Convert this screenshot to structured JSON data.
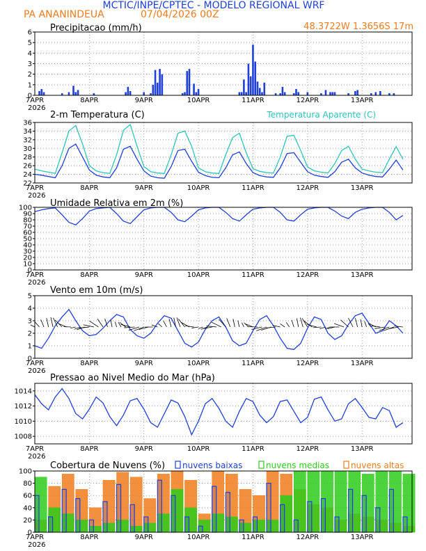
{
  "header": {
    "title": "MCTIC/INPE/CPTEC - MODELO REGIONAL WRF",
    "location": "PA ANANINDEUA",
    "datetime": "07/04/2026 00Z",
    "coords": "48.3722W 1.3656S 17m"
  },
  "colors": {
    "blue": "#1f3fd6",
    "orange": "#f07c1c",
    "cyan": "#2cc3b8",
    "green": "#2ecc1a",
    "grid": "#999999"
  },
  "chart_data": [
    {
      "type": "bar",
      "title": "Precipitacao (mm/h)",
      "x_labels": [
        "7APR",
        "8APR",
        "9APR",
        "10APR",
        "11APR",
        "12APR",
        "13APR"
      ],
      "x_sublabel": "2026",
      "ylim": [
        0,
        6
      ],
      "yticks": [
        0,
        1,
        2,
        3,
        4,
        5,
        6
      ],
      "grid": true,
      "x_hours": [
        2,
        3,
        4,
        12,
        15,
        17,
        18,
        19,
        26,
        40,
        41,
        42,
        48,
        51,
        52,
        53,
        54,
        55,
        56,
        65,
        66,
        67,
        68,
        70,
        71,
        72,
        90,
        91,
        92,
        93,
        94,
        95,
        96,
        97,
        98,
        99,
        100,
        101,
        106,
        108,
        109,
        110,
        114,
        115,
        116,
        120,
        126,
        128,
        130,
        131,
        132,
        138,
        141,
        142,
        148,
        150,
        152,
        156,
        158
      ],
      "values": [
        0.4,
        0.6,
        0.3,
        0.2,
        0.3,
        0.9,
        0.3,
        0.5,
        0.2,
        0.3,
        0.8,
        0.4,
        0.3,
        0.2,
        1.0,
        2.4,
        1.2,
        2.5,
        2.0,
        0.2,
        0.3,
        2.3,
        2.5,
        1.1,
        0.3,
        0.6,
        0.3,
        0.3,
        1.5,
        0.3,
        3.0,
        1.8,
        4.8,
        3.2,
        1.3,
        0.7,
        0.3,
        1.2,
        0.2,
        0.2,
        0.8,
        0.3,
        0.2,
        0.6,
        0.3,
        0.3,
        0.2,
        0.5,
        0.3,
        0.3,
        0.3,
        0.2,
        0.4,
        0.5,
        0.2,
        0.3,
        0.4,
        0.2,
        0.2
      ]
    },
    {
      "type": "line",
      "title": "2-m Temperatura (C)",
      "x_labels": [
        "7APR",
        "8APR",
        "9APR",
        "10APR",
        "11APR",
        "12APR",
        "13APR"
      ],
      "x_sublabel": "2026",
      "ylim": [
        22,
        36
      ],
      "yticks": [
        22,
        24,
        26,
        28,
        30,
        32,
        34,
        36
      ],
      "grid": true,
      "legend_position": "top-right",
      "series": [
        {
          "name": "",
          "color": "#1f3fd6",
          "x": [
            0,
            3,
            6,
            9,
            12,
            15,
            18,
            21,
            24,
            27,
            30,
            33,
            36,
            39,
            42,
            45,
            48,
            51,
            54,
            57,
            60,
            63,
            66,
            69,
            72,
            75,
            78,
            81,
            84,
            87,
            90,
            93,
            96,
            99,
            102,
            105,
            108,
            111,
            114,
            117,
            120,
            123,
            126,
            129,
            132,
            135,
            138,
            141,
            144,
            147,
            150,
            153,
            156,
            159,
            162
          ],
          "values": [
            24,
            23.8,
            23.5,
            23.2,
            26,
            30,
            31,
            28,
            25,
            23.8,
            23.4,
            23.2,
            25.5,
            29.8,
            30.5,
            27.5,
            24.8,
            23.6,
            23.2,
            23.1,
            25.8,
            29.5,
            29.8,
            27,
            24.5,
            23.7,
            23.3,
            23.2,
            25.5,
            28.5,
            29.2,
            26.5,
            24.4,
            23.7,
            23.4,
            23.3,
            25.5,
            28.8,
            29,
            26.8,
            24.6,
            23.8,
            23.5,
            23.3,
            24.6,
            26.8,
            27.5,
            25.5,
            24.3,
            23.8,
            23.5,
            23.4,
            25.2,
            27.3,
            25
          ]
        },
        {
          "name": "Temperatura Aparente (C)",
          "color": "#2cc3b8",
          "x": [
            0,
            3,
            6,
            9,
            12,
            15,
            18,
            21,
            24,
            27,
            30,
            33,
            36,
            39,
            42,
            45,
            48,
            51,
            54,
            57,
            60,
            63,
            66,
            69,
            72,
            75,
            78,
            81,
            84,
            87,
            90,
            93,
            96,
            99,
            102,
            105,
            108,
            111,
            114,
            117,
            120,
            123,
            126,
            129,
            132,
            135,
            138,
            141,
            144,
            147,
            150,
            153,
            156,
            159,
            162
          ],
          "values": [
            25.2,
            24.8,
            24.5,
            24.2,
            29,
            34,
            35.3,
            31,
            26,
            24.8,
            24.4,
            24.2,
            28.5,
            34.2,
            35.5,
            30.5,
            25.8,
            24.6,
            24.3,
            24.2,
            28.5,
            33.5,
            34,
            30.5,
            25.5,
            24.6,
            24.3,
            24.2,
            28.5,
            32.5,
            33.5,
            29,
            25.3,
            24.7,
            24.4,
            24.3,
            28,
            32.8,
            33,
            29.5,
            25.7,
            24.8,
            24.5,
            24.3,
            26.5,
            29.5,
            30.5,
            27.5,
            25.2,
            24.8,
            24.5,
            24.4,
            27.5,
            30.4,
            27.5
          ]
        }
      ]
    },
    {
      "type": "line",
      "title": "Umidade Relativa em 2m (%)",
      "x_labels": [
        "7APR",
        "8APR",
        "9APR",
        "10APR",
        "11APR",
        "12APR",
        "13APR"
      ],
      "x_sublabel": "2026",
      "ylim": [
        0,
        100
      ],
      "yticks": [
        0,
        10,
        20,
        30,
        40,
        50,
        60,
        70,
        80,
        90,
        100
      ],
      "grid": true,
      "series": [
        {
          "name": "",
          "color": "#1f3fd6",
          "x": [
            0,
            3,
            6,
            9,
            12,
            15,
            18,
            21,
            24,
            27,
            30,
            33,
            36,
            39,
            42,
            45,
            48,
            51,
            54,
            57,
            60,
            63,
            66,
            69,
            72,
            75,
            78,
            81,
            84,
            87,
            90,
            93,
            96,
            99,
            102,
            105,
            108,
            111,
            114,
            117,
            120,
            123,
            126,
            129,
            132,
            135,
            138,
            141,
            144,
            147,
            150,
            153,
            156,
            159,
            162
          ],
          "values": [
            93,
            96,
            98,
            99,
            88,
            76,
            72,
            82,
            94,
            98,
            99,
            100,
            90,
            78,
            74,
            85,
            96,
            99,
            100,
            100,
            92,
            80,
            77,
            86,
            96,
            99,
            100,
            100,
            92,
            82,
            78,
            88,
            97,
            99,
            100,
            100,
            92,
            80,
            78,
            88,
            97,
            99,
            100,
            100,
            94,
            86,
            82,
            92,
            97,
            99,
            100,
            100,
            92,
            80,
            87
          ]
        }
      ]
    },
    {
      "type": "line",
      "title": "Vento em 10m (m/s)",
      "x_labels": [
        "7APR",
        "8APR",
        "9APR",
        "10APR",
        "11APR",
        "12APR",
        "13APR"
      ],
      "x_sublabel": "2026",
      "ylim": [
        0,
        5
      ],
      "yticks": [
        0,
        1,
        2,
        3,
        4,
        5
      ],
      "grid": true,
      "series": [
        {
          "name": "",
          "color": "#1f3fd6",
          "x": [
            0,
            3,
            6,
            9,
            12,
            15,
            18,
            21,
            24,
            27,
            30,
            33,
            36,
            39,
            42,
            45,
            48,
            51,
            54,
            57,
            60,
            63,
            66,
            69,
            72,
            75,
            78,
            81,
            84,
            87,
            90,
            93,
            96,
            99,
            102,
            105,
            108,
            111,
            114,
            117,
            120,
            123,
            126,
            129,
            132,
            135,
            138,
            141,
            144,
            147,
            150,
            153,
            156,
            159,
            162
          ],
          "values": [
            1.0,
            0.8,
            1.6,
            2.6,
            3.3,
            3.9,
            3.0,
            2.2,
            1.8,
            1.9,
            2.4,
            3.0,
            3.5,
            3.3,
            2.3,
            1.8,
            1.6,
            2.0,
            2.8,
            3.4,
            3.2,
            2.2,
            1.2,
            0.9,
            1.3,
            2.3,
            3.0,
            3.3,
            2.5,
            1.4,
            1.0,
            1.2,
            2.2,
            3.1,
            3.4,
            2.6,
            1.6,
            0.8,
            0.7,
            1.2,
            2.4,
            3.3,
            3.1,
            2.0,
            1.5,
            1.8,
            2.7,
            3.4,
            3.6,
            2.8,
            2.0,
            2.2,
            3.0,
            2.6,
            2.0
          ]
        }
      ]
    },
    {
      "type": "line",
      "title": "Pressao ao Nivel Medio do Mar (hPa)",
      "x_labels": [
        "7APR",
        "8APR",
        "9APR",
        "10APR",
        "11APR",
        "12APR",
        "13APR"
      ],
      "x_sublabel": "2026",
      "ylim": [
        1007,
        1015
      ],
      "yticks": [
        1008,
        1010,
        1012,
        1014
      ],
      "grid": true,
      "series": [
        {
          "name": "",
          "color": "#1f3fd6",
          "x": [
            0,
            3,
            6,
            9,
            12,
            15,
            18,
            21,
            24,
            27,
            30,
            33,
            36,
            39,
            42,
            45,
            48,
            51,
            54,
            57,
            60,
            63,
            66,
            69,
            72,
            75,
            78,
            81,
            84,
            87,
            90,
            93,
            96,
            99,
            102,
            105,
            108,
            111,
            114,
            117,
            120,
            123,
            126,
            129,
            132,
            135,
            138,
            141,
            144,
            147,
            150,
            153,
            156,
            159,
            162
          ],
          "values": [
            1013.5,
            1012.3,
            1011.5,
            1013.2,
            1014.3,
            1013.0,
            1011.0,
            1010.3,
            1011.6,
            1013.2,
            1012.4,
            1010.6,
            1009.4,
            1010.8,
            1012.7,
            1013.0,
            1011.6,
            1009.8,
            1009.2,
            1011.0,
            1012.8,
            1012.4,
            1010.6,
            1008.2,
            1010.0,
            1012.3,
            1013.0,
            1011.7,
            1010.0,
            1009.2,
            1011.3,
            1013.0,
            1012.6,
            1010.8,
            1009.8,
            1010.6,
            1012.6,
            1012.8,
            1011.3,
            1009.8,
            1010.5,
            1012.9,
            1013.2,
            1011.5,
            1010.0,
            1010.3,
            1012.3,
            1013.0,
            1011.8,
            1010.5,
            1010.3,
            1011.8,
            1011.4,
            1009.2,
            1009.8
          ]
        }
      ]
    },
    {
      "type": "bar",
      "title": "Cobertura de Nuvens (%)",
      "x_labels": [
        "7APR",
        "8APR",
        "9APR",
        "10APR",
        "11APR",
        "12APR",
        "13APR"
      ],
      "x_sublabel": "2026",
      "ylim": [
        0,
        100
      ],
      "yticks": [
        0,
        20,
        40,
        60,
        80,
        100
      ],
      "grid": true,
      "legend_position": "top",
      "series": [
        {
          "name": "nuvens baixas",
          "color": "#1f3fd6",
          "x": [
            0,
            6,
            12,
            18,
            24,
            30,
            36,
            42,
            48,
            54,
            60,
            66,
            72,
            78,
            84,
            90,
            96,
            102,
            108,
            114,
            120,
            126,
            132,
            138,
            144,
            150,
            156,
            162
          ],
          "values": [
            60,
            25,
            70,
            55,
            20,
            50,
            78,
            45,
            25,
            85,
            60,
            25,
            10,
            75,
            65,
            20,
            25,
            80,
            45,
            20,
            50,
            55,
            25,
            70,
            60,
            40,
            70,
            25
          ]
        },
        {
          "name": "nuvens medias",
          "color": "#2ecc1a",
          "x": [
            0,
            6,
            12,
            18,
            24,
            30,
            36,
            42,
            48,
            54,
            60,
            66,
            72,
            78,
            84,
            90,
            96,
            102,
            108,
            114,
            120,
            126,
            132,
            138,
            144,
            150,
            156,
            162
          ],
          "values": [
            90,
            40,
            30,
            20,
            10,
            15,
            20,
            10,
            15,
            30,
            70,
            40,
            20,
            30,
            25,
            15,
            20,
            20,
            60,
            100,
            100,
            100,
            100,
            100,
            95,
            100,
            100,
            95
          ]
        },
        {
          "name": "nuvens altas",
          "color": "#f07c1c",
          "x": [
            0,
            6,
            12,
            18,
            24,
            30,
            36,
            42,
            48,
            54,
            60,
            66,
            72,
            78,
            84,
            90,
            96,
            102,
            108,
            114,
            120,
            126,
            132,
            138,
            144,
            150,
            156,
            162
          ],
          "values": [
            20,
            75,
            95,
            70,
            40,
            85,
            98,
            90,
            55,
            95,
            100,
            85,
            30,
            100,
            95,
            70,
            60,
            100,
            95,
            70,
            45,
            40,
            20,
            30,
            25,
            20,
            15,
            10
          ]
        }
      ]
    }
  ]
}
